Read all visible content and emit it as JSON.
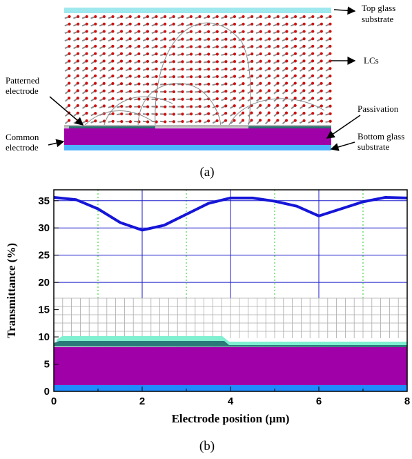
{
  "panel_a": {
    "caption": "(a)",
    "labels": [
      {
        "lines": [
          "Top glass",
          "substrate"
        ]
      },
      {
        "lines": [
          "LCs"
        ]
      },
      {
        "lines": [
          "Patterned",
          "electrode"
        ]
      },
      {
        "lines": [
          "Passivation"
        ]
      },
      {
        "lines": [
          "Common",
          "electrode"
        ]
      },
      {
        "lines": [
          "Bottom glass",
          "substrate"
        ]
      }
    ]
  },
  "chart_data": {
    "type": "line",
    "caption": "(b)",
    "x_label": "Electrode position (μm)",
    "y_label": "Transmittance (%)",
    "x": [
      0,
      0.5,
      1,
      1.5,
      2,
      2.5,
      3,
      3.5,
      4,
      4.5,
      5,
      5.5,
      6,
      6.5,
      7,
      7.5,
      8
    ],
    "values": [
      35.6,
      35.2,
      33.5,
      31,
      29.6,
      30.5,
      32.5,
      34.5,
      35.5,
      35.5,
      34.9,
      34,
      32.2,
      33.5,
      34.8,
      35.6,
      35.5
    ],
    "color": "#1515d8",
    "xlim": [
      0,
      8
    ],
    "xticks": [
      0,
      2,
      4,
      6,
      8
    ],
    "xminorticks": [
      1,
      3,
      5,
      7
    ],
    "ylim": [
      0,
      37
    ],
    "yticks": [
      0,
      5,
      10,
      15,
      20,
      25,
      30,
      35
    ],
    "grid": true
  }
}
